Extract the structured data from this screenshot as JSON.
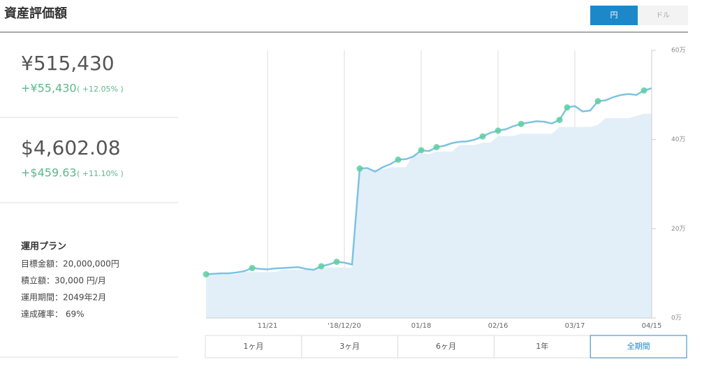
{
  "header": {
    "title": "資産評価額",
    "currency_buttons": [
      "円",
      "ドル"
    ]
  },
  "summary": {
    "jpy": {
      "value": "¥515,430",
      "change": "+¥55,430",
      "change_pct": "( +12.05% )"
    },
    "usd": {
      "value": "$4,602.08",
      "change": "+$459.63",
      "change_pct": "( +11.10% )"
    }
  },
  "plan": {
    "title": "運用プラン",
    "lines": [
      "目標金額：20,000,000円",
      "積立額：30,000 円/月",
      "運用期間：2049年2月",
      "達成確率： 69%"
    ]
  },
  "periods": [
    "1ヶ月",
    "3ヶ月",
    "6ヶ月",
    "1年",
    "全期間"
  ],
  "chart_data": {
    "type": "line",
    "categories": [
      null,
      null,
      null,
      null,
      null,
      null,
      null,
      null,
      "11/21",
      null,
      null,
      null,
      null,
      null,
      null,
      null,
      null,
      null,
      "'18/12/20",
      null,
      null,
      null,
      null,
      null,
      null,
      null,
      null,
      null,
      "01/18",
      null,
      null,
      null,
      null,
      null,
      null,
      null,
      null,
      null,
      "02/16",
      null,
      null,
      null,
      null,
      null,
      null,
      null,
      null,
      null,
      "03/17",
      null,
      null,
      null,
      null,
      null,
      null,
      null,
      null,
      null,
      "04/15"
    ],
    "series": [
      {
        "type": "area",
        "color": "#e3eff8",
        "values": [
          9.8,
          9.8,
          9.8,
          9.8,
          9.8,
          10.3,
          10.3,
          10.3,
          10.3,
          10.3,
          10.8,
          10.8,
          10.8,
          10.8,
          10.8,
          11.3,
          11.3,
          11.3,
          11.3,
          11.3,
          33.3,
          33.3,
          33.3,
          33.3,
          33.8,
          33.8,
          33.8,
          36.8,
          36.8,
          36.8,
          37.3,
          37.3,
          37.3,
          38.8,
          38.8,
          38.8,
          39.3,
          39.3,
          40.8,
          40.8,
          40.8,
          41.3,
          41.3,
          41.3,
          41.3,
          41.3,
          42.8,
          42.8,
          42.8,
          42.8,
          42.8,
          43.3,
          44.8,
          44.8,
          44.8,
          44.8,
          45.3,
          45.8,
          45.8
        ]
      },
      {
        "type": "line",
        "color": "#7cc3e3",
        "marker_color": "#5dcf9f",
        "markers": [
          0,
          6,
          15,
          17,
          20,
          25,
          28,
          30,
          36,
          38,
          41,
          46,
          47,
          51,
          57
        ],
        "values": [
          9.8,
          9.9,
          10,
          10,
          10.2,
          10.5,
          11.2,
          11,
          10.9,
          11.1,
          11.2,
          11.3,
          11.4,
          11,
          10.8,
          11.6,
          12,
          12.6,
          12.4,
          12,
          33.5,
          33.6,
          32.8,
          33.8,
          34.5,
          35.5,
          35.6,
          36.2,
          37.6,
          37.4,
          38.3,
          38.6,
          39.2,
          39.5,
          39.6,
          40,
          40.7,
          41.5,
          42,
          42.3,
          43,
          43.5,
          43.8,
          44.1,
          44,
          43.6,
          44.4,
          47.2,
          47.5,
          46.3,
          46.5,
          48.6,
          48.8,
          49.5,
          50,
          50.2,
          50,
          51,
          51.5
        ]
      }
    ],
    "ylim": [
      0,
      60
    ],
    "yticks": [
      {
        "value": 0,
        "label": "0万"
      },
      {
        "value": 20,
        "label": "20万"
      },
      {
        "value": 40,
        "label": "40万"
      },
      {
        "value": 60,
        "label": "60万"
      }
    ],
    "grid": true
  }
}
